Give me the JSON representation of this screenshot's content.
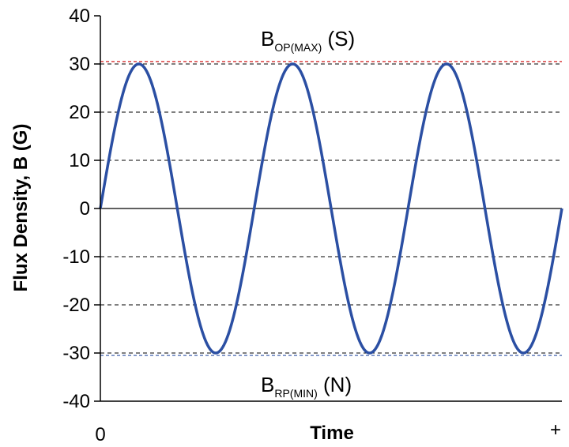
{
  "chart_data": {
    "type": "line",
    "ylabel": "Flux Density, B (G)",
    "xlabel": "Time",
    "x_tick_labels": {
      "start": "0",
      "end": "+"
    },
    "ylim": [
      -40,
      40
    ],
    "yticks": [
      40,
      30,
      20,
      10,
      0,
      -10,
      -20,
      -30,
      -40
    ],
    "y_tick_labels": [
      "40",
      "30",
      "20",
      "10",
      "0",
      "-10",
      "-20",
      "-30",
      "-40"
    ],
    "grid": "horizontal dashed",
    "series": [
      {
        "color": "#2b4fa3",
        "function": "sine",
        "amplitude": 30,
        "cycles": 3,
        "x": [
          0,
          0.5,
          1,
          1.5,
          2,
          2.5,
          3
        ],
        "y": [
          0,
          30,
          0,
          -30,
          0,
          30,
          0
        ]
      }
    ],
    "reference_lines": [
      {
        "y": 30.5,
        "color": "#cc0000",
        "base": "B",
        "subscript": "OP(MAX)",
        "suffix": " (S)"
      },
      {
        "y": -30.5,
        "color": "#2b4fa3",
        "base": "B",
        "subscript": "RP(MIN)",
        "suffix": " (N)"
      }
    ]
  }
}
